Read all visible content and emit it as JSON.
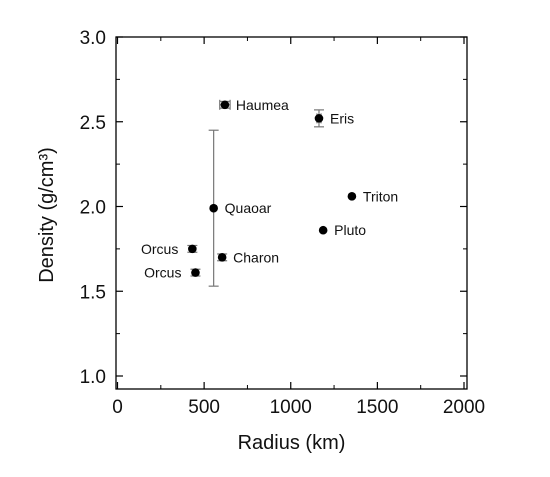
{
  "chart_data": {
    "type": "scatter",
    "title": "",
    "xlabel": "Radius (km)",
    "ylabel": "Density (g/cm³)",
    "xlim": [
      0,
      2000
    ],
    "ylim": [
      0.95,
      3.0
    ],
    "xticks": [
      0,
      500,
      1000,
      1500,
      2000
    ],
    "xtick_labels": [
      "0",
      "500",
      "1000",
      "1500",
      "2000"
    ],
    "yticks": [
      1.0,
      1.5,
      2.0,
      2.5,
      3.0
    ],
    "ytick_labels": [
      "1.0",
      "1.5",
      "2.0",
      "2.5",
      "3.0"
    ],
    "grid": false,
    "legend": "none",
    "marker_color": "#000000",
    "errorbar_color": "#777777",
    "points": [
      {
        "label": "Haumea",
        "x": 620,
        "y": 2.6,
        "xerr": 30,
        "yerr": 0.02,
        "label_side": "right"
      },
      {
        "label": "Eris",
        "x": 1163,
        "y": 2.52,
        "xerr": 12,
        "yerr": 0.05,
        "label_side": "right"
      },
      {
        "label": "Triton",
        "x": 1353,
        "y": 2.06,
        "xerr": 0,
        "yerr": 0,
        "label_side": "right"
      },
      {
        "label": "Quaoar",
        "x": 555,
        "y": 1.99,
        "xerr": 0,
        "yerr": 0.46,
        "label_side": "right"
      },
      {
        "label": "Pluto",
        "x": 1187,
        "y": 1.86,
        "xerr": 0,
        "yerr": 0,
        "label_side": "right"
      },
      {
        "label": "Orcus",
        "x": 432,
        "y": 1.75,
        "xerr": 0,
        "yerr": 0.02,
        "label_side": "left"
      },
      {
        "label": "Charon",
        "x": 604,
        "y": 1.7,
        "xerr": 0,
        "yerr": 0.02,
        "label_side": "right"
      },
      {
        "label": "Orcus",
        "x": 450,
        "y": 1.61,
        "xerr": 0,
        "yerr": 0.02,
        "label_side": "left"
      }
    ]
  }
}
